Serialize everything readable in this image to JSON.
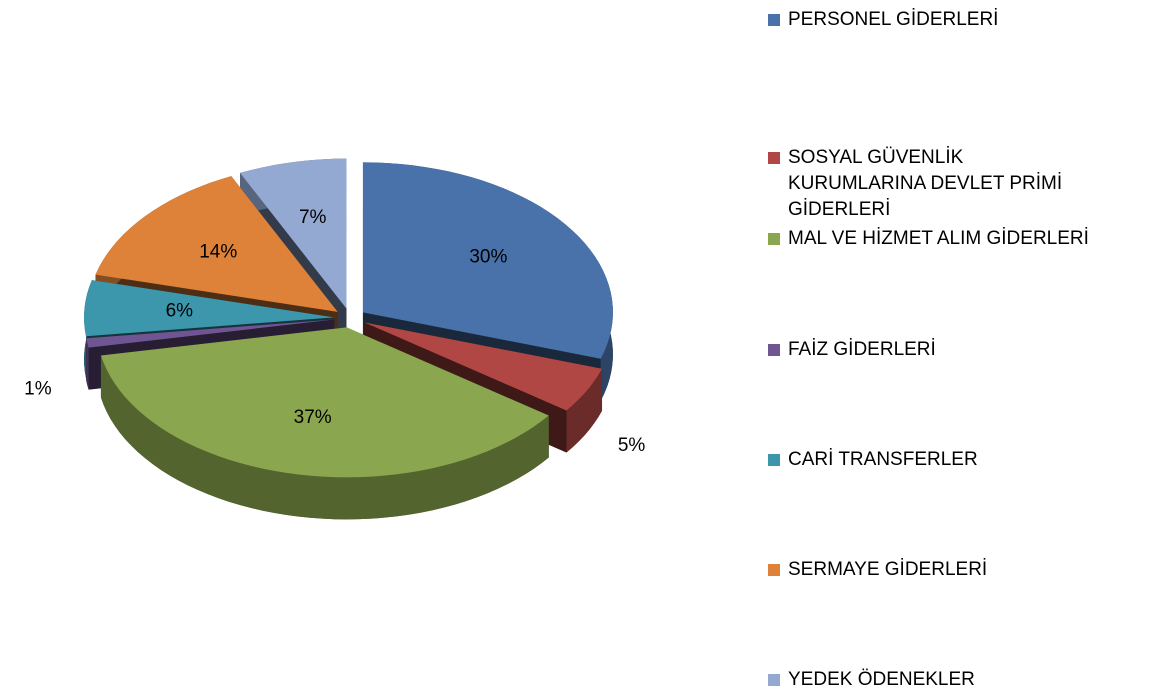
{
  "chart_data": {
    "type": "pie3d",
    "categories": [
      "PERSONEL GİDERLERİ",
      "SOSYAL GÜVENLİK KURUMLARINA DEVLET PRİMİ GİDERLERİ",
      "MAL VE HİZMET ALIM GİDERLERİ",
      "FAİZ  GİDERLERİ",
      "CARİ TRANSFERLER",
      "SERMAYE GİDERLERİ",
      "YEDEK ÖDENEKLER"
    ],
    "values": [
      30,
      5,
      37,
      1,
      6,
      14,
      7
    ],
    "value_labels": [
      "30%",
      "5%",
      "37%",
      "1%",
      "6%",
      "14%",
      "7%"
    ],
    "colors": [
      "#4a72aa",
      "#b04744",
      "#8aa64f",
      "#6f5592",
      "#3c97ad",
      "#dd8238",
      "#93a9d2"
    ],
    "legend": "right"
  }
}
